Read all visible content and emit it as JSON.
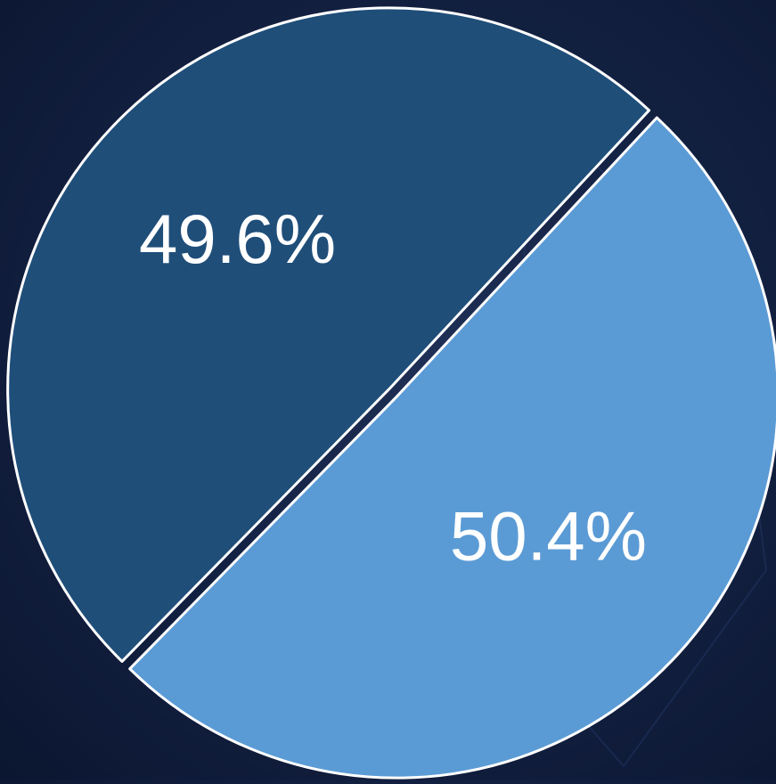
{
  "chart_data": {
    "type": "pie",
    "slices": [
      {
        "label": "50.4%",
        "value": 50.4,
        "color": "#5b9bd5"
      },
      {
        "label": "49.6%",
        "value": 49.6,
        "color": "#1f4e79"
      }
    ],
    "legend": "none"
  }
}
